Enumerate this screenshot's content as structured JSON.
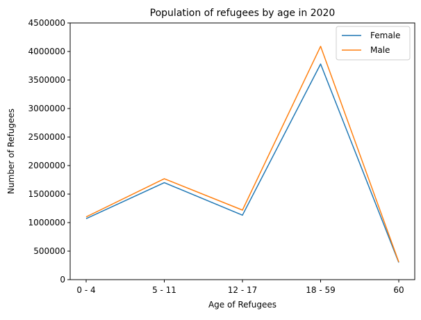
{
  "chart_data": {
    "type": "line",
    "title": "Population of refugees by age in 2020",
    "xlabel": "Age of Refugees",
    "ylabel": "Number of Refugees",
    "categories": [
      "0 - 4",
      "5 - 11",
      "12 - 17",
      "18 - 59",
      "60"
    ],
    "ylim": [
      0,
      4500000
    ],
    "yticks": [
      0,
      500000,
      1000000,
      1500000,
      2000000,
      2500000,
      3000000,
      3500000,
      4000000,
      4500000
    ],
    "grid": false,
    "legend_position": "top-right",
    "series": [
      {
        "name": "Female",
        "color": "#1f77b4",
        "values": [
          1070000,
          1700000,
          1130000,
          3780000,
          300000
        ]
      },
      {
        "name": "Male",
        "color": "#ff7f0e",
        "values": [
          1100000,
          1770000,
          1220000,
          4090000,
          310000
        ]
      }
    ]
  }
}
